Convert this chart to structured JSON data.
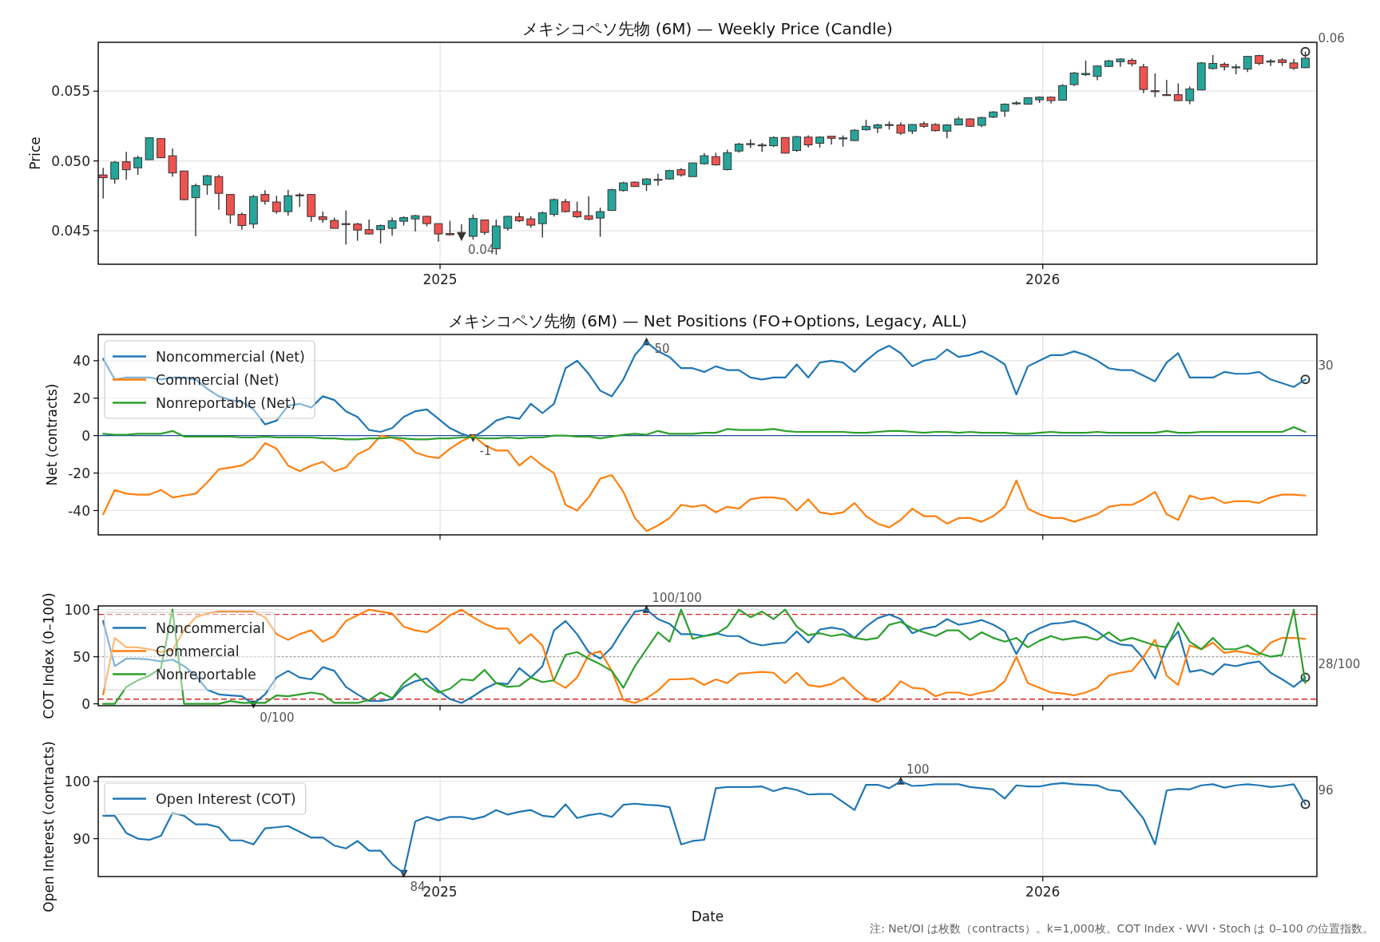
{
  "chart_data": [
    {
      "type": "candlestick",
      "title": "メキシコペソ先物 (6M) — Weekly Price (Candle)",
      "ylabel": "Price",
      "x": [
        "2024-06-11",
        "2024-06-18",
        "2024-06-25",
        "2024-07-02",
        "2024-07-09",
        "2024-07-16",
        "2024-07-23",
        "2024-07-30",
        "2024-08-06",
        "2024-08-13",
        "2024-08-20",
        "2024-08-27",
        "2024-09-03",
        "2024-09-10",
        "2024-09-17",
        "2024-09-24",
        "2024-10-01",
        "2024-10-08",
        "2024-10-15",
        "2024-10-22",
        "2024-10-29",
        "2024-11-05",
        "2024-11-12",
        "2024-11-19",
        "2024-11-26",
        "2024-12-03",
        "2024-12-10",
        "2024-12-17",
        "2024-12-24",
        "2024-12-31",
        "2025-01-07",
        "2025-01-14",
        "2025-01-21",
        "2025-01-28",
        "2025-02-04",
        "2025-02-11",
        "2025-02-18",
        "2025-02-25",
        "2025-03-04",
        "2025-03-11",
        "2025-03-18",
        "2025-03-25",
        "2025-04-01",
        "2025-04-08",
        "2025-04-15",
        "2025-04-22",
        "2025-04-29",
        "2025-05-06",
        "2025-05-13",
        "2025-05-20",
        "2025-05-27",
        "2025-06-03",
        "2025-06-10",
        "2025-06-17",
        "2025-06-24",
        "2025-07-01",
        "2025-07-08",
        "2025-07-15",
        "2025-07-22",
        "2025-07-29",
        "2025-08-05",
        "2025-08-12",
        "2025-08-19",
        "2025-08-26",
        "2025-09-02",
        "2025-09-09",
        "2025-09-16",
        "2025-09-23",
        "2025-09-30",
        "2025-10-07",
        "2025-10-14",
        "2025-10-21",
        "2025-10-28",
        "2025-11-04",
        "2025-11-11",
        "2025-11-18",
        "2025-11-25",
        "2025-12-02",
        "2025-12-09",
        "2025-12-16",
        "2025-12-23",
        "2025-12-30",
        "2026-01-06",
        "2026-01-13",
        "2026-01-20",
        "2026-01-27",
        "2026-02-03",
        "2026-02-10",
        "2026-02-17",
        "2026-02-24",
        "2026-03-03",
        "2026-03-10",
        "2026-03-17",
        "2026-03-24",
        "2026-03-31",
        "2026-04-07",
        "2026-04-14",
        "2026-04-21",
        "2026-04-28",
        "2026-05-05",
        "2026-05-12",
        "2026-05-19",
        "2026-05-26",
        "2026-06-02",
        "2026-06-09"
      ],
      "ohlc": [
        [
          0.049,
          0.0495,
          0.0473,
          0.0488
        ],
        [
          0.04871,
          0.05,
          0.04837,
          0.04991
        ],
        [
          0.04994,
          0.05066,
          0.04866,
          0.04937
        ],
        [
          0.04951,
          0.05037,
          0.049,
          0.05023
        ],
        [
          0.05009,
          0.05166,
          0.05009,
          0.05166
        ],
        [
          0.0516,
          0.0516,
          0.0502,
          0.05023
        ],
        [
          0.05037,
          0.05089,
          0.04888,
          0.04914
        ],
        [
          0.04928,
          0.04928,
          0.04717,
          0.04723
        ],
        [
          0.04737,
          0.04837,
          0.0446,
          0.04823
        ],
        [
          0.04828,
          0.049,
          0.04757,
          0.04894
        ],
        [
          0.04888,
          0.049,
          0.04651,
          0.04768
        ],
        [
          0.0476,
          0.0476,
          0.04551,
          0.04614
        ],
        [
          0.04617,
          0.04631,
          0.04508,
          0.04537
        ],
        [
          0.04548,
          0.04757,
          0.04517,
          0.04745
        ],
        [
          0.0476,
          0.04791,
          0.04688,
          0.04711
        ],
        [
          0.04706,
          0.04751,
          0.04622,
          0.04637
        ],
        [
          0.04637,
          0.04794,
          0.04608,
          0.04751
        ],
        [
          0.04757,
          0.04771,
          0.04671,
          0.04751
        ],
        [
          0.0476,
          0.0476,
          0.04565,
          0.04602
        ],
        [
          0.046,
          0.04637,
          0.04557,
          0.0458
        ],
        [
          0.04574,
          0.04594,
          0.04517,
          0.04517
        ],
        [
          0.04551,
          0.04645,
          0.04402,
          0.04545
        ],
        [
          0.04548,
          0.04557,
          0.04428,
          0.04505
        ],
        [
          0.04508,
          0.0458,
          0.04474,
          0.04477
        ],
        [
          0.04508,
          0.04545,
          0.04408,
          0.04537
        ],
        [
          0.04517,
          0.04594,
          0.04465,
          0.04571
        ],
        [
          0.04568,
          0.04603,
          0.04537,
          0.04594
        ],
        [
          0.04585,
          0.04614,
          0.04494,
          0.04608
        ],
        [
          0.04603,
          0.04608,
          0.04531,
          0.04551
        ],
        [
          0.04551,
          0.04551,
          0.04422,
          0.04477
        ],
        [
          0.0448,
          0.04571,
          0.04465,
          0.04471
        ],
        [
          0.04488,
          0.04546,
          0.0446,
          0.04485
        ],
        [
          0.0446,
          0.04617,
          0.04437,
          0.04588
        ],
        [
          0.04577,
          0.04577,
          0.04471,
          0.04488
        ],
        [
          0.04371,
          0.0458,
          0.04328,
          0.04534
        ],
        [
          0.04517,
          0.04608,
          0.04502,
          0.04603
        ],
        [
          0.046,
          0.04631,
          0.04562,
          0.04571
        ],
        [
          0.04585,
          0.04603,
          0.04522,
          0.0454
        ],
        [
          0.04551,
          0.04637,
          0.04451,
          0.04628
        ],
        [
          0.04617,
          0.04731,
          0.04602,
          0.04723
        ],
        [
          0.04708,
          0.04728,
          0.04631,
          0.04637
        ],
        [
          0.04637,
          0.04708,
          0.04591,
          0.046
        ],
        [
          0.04608,
          0.04746,
          0.04574,
          0.04582
        ],
        [
          0.04591,
          0.04665,
          0.04457,
          0.04637
        ],
        [
          0.04645,
          0.048,
          0.04643,
          0.04794
        ],
        [
          0.04788,
          0.04851,
          0.0478,
          0.04843
        ],
        [
          0.04848,
          0.04854,
          0.04814,
          0.04817
        ],
        [
          0.04831,
          0.04877,
          0.04785,
          0.04871
        ],
        [
          0.04866,
          0.04908,
          0.04823,
          0.04868
        ],
        [
          0.04871,
          0.04937,
          0.04866,
          0.04931
        ],
        [
          0.04937,
          0.04949,
          0.04888,
          0.049
        ],
        [
          0.04888,
          0.04986,
          0.04888,
          0.04986
        ],
        [
          0.0498,
          0.05057,
          0.04974,
          0.05037
        ],
        [
          0.05031,
          0.05059,
          0.04966,
          0.04972
        ],
        [
          0.04938,
          0.05081,
          0.04932,
          0.05059
        ],
        [
          0.05071,
          0.0513,
          0.05059,
          0.05121
        ],
        [
          0.05121,
          0.05155,
          0.05093,
          0.05124
        ],
        [
          0.05115,
          0.0513,
          0.05065,
          0.05112
        ],
        [
          0.05109,
          0.05177,
          0.05099,
          0.05168
        ],
        [
          0.05168,
          0.05168,
          0.05053,
          0.05056
        ],
        [
          0.05075,
          0.0518,
          0.05065,
          0.05174
        ],
        [
          0.05171,
          0.05183,
          0.05096,
          0.05115
        ],
        [
          0.05127,
          0.05177,
          0.05096,
          0.05171
        ],
        [
          0.05177,
          0.05177,
          0.05118,
          0.05162
        ],
        [
          0.05158,
          0.05183,
          0.05102,
          0.05165
        ],
        [
          0.05146,
          0.05227,
          0.05143,
          0.0522
        ],
        [
          0.05224,
          0.05295,
          0.05217,
          0.05248
        ],
        [
          0.05236,
          0.05267,
          0.05199,
          0.05258
        ],
        [
          0.05255,
          0.05283,
          0.05224,
          0.05261
        ],
        [
          0.05258,
          0.05276,
          0.05186,
          0.05199
        ],
        [
          0.05214,
          0.05264,
          0.05193,
          0.05261
        ],
        [
          0.05267,
          0.05283,
          0.05236,
          0.05248
        ],
        [
          0.05261,
          0.0527,
          0.05211,
          0.05217
        ],
        [
          0.05214,
          0.05264,
          0.05162,
          0.05258
        ],
        [
          0.05258,
          0.05317,
          0.05255,
          0.05301
        ],
        [
          0.05301,
          0.05307,
          0.05245,
          0.05248
        ],
        [
          0.05255,
          0.05317,
          0.05242,
          0.05311
        ],
        [
          0.05314,
          0.05357,
          0.05307,
          0.05351
        ],
        [
          0.05357,
          0.05413,
          0.05317,
          0.05407
        ],
        [
          0.0541,
          0.05429,
          0.05401,
          0.05416
        ],
        [
          0.05407,
          0.05457,
          0.05404,
          0.05453
        ],
        [
          0.05438,
          0.05463,
          0.05416,
          0.05457
        ],
        [
          0.05457,
          0.05463,
          0.05413,
          0.05432
        ],
        [
          0.05435,
          0.0555,
          0.05432,
          0.0554
        ],
        [
          0.05547,
          0.05637,
          0.05537,
          0.0563
        ],
        [
          0.05618,
          0.0572,
          0.05609,
          0.05627
        ],
        [
          0.05606,
          0.05686,
          0.05578,
          0.0568
        ],
        [
          0.05677,
          0.05724,
          0.05674,
          0.05717
        ],
        [
          0.05711,
          0.05736,
          0.05674,
          0.0573
        ],
        [
          0.05721,
          0.05736,
          0.05677,
          0.05696
        ],
        [
          0.05674,
          0.05696,
          0.05485,
          0.05512
        ],
        [
          0.05503,
          0.05627,
          0.05457,
          0.05497
        ],
        [
          0.05475,
          0.05581,
          0.05469,
          0.05469
        ],
        [
          0.05475,
          0.05556,
          0.05429,
          0.05432
        ],
        [
          0.05432,
          0.05534,
          0.05407,
          0.05516
        ],
        [
          0.05509,
          0.05708,
          0.05506,
          0.05702
        ],
        [
          0.05662,
          0.05758,
          0.05655,
          0.05699
        ],
        [
          0.05693,
          0.05705,
          0.05649,
          0.05674
        ],
        [
          0.05668,
          0.05693,
          0.05621,
          0.05674
        ],
        [
          0.05658,
          0.05749,
          0.05637,
          0.05749
        ],
        [
          0.05755,
          0.05761,
          0.05686,
          0.05699
        ],
        [
          0.05708,
          0.0573,
          0.0568,
          0.05717
        ],
        [
          0.05724,
          0.05736,
          0.0568,
          0.05705
        ],
        [
          0.05702,
          0.0573,
          0.05652,
          0.05665
        ],
        [
          0.05668,
          0.05783,
          0.05665,
          0.05736
        ]
      ],
      "colors": [
        "#ef5350",
        "#26a69a",
        "#ef5350",
        "#26a69a",
        "#26a69a",
        "#ef5350",
        "#ef5350",
        "#ef5350",
        "#26a69a",
        "#26a69a",
        "#ef5350",
        "#ef5350",
        "#ef5350",
        "#26a69a",
        "#ef5350",
        "#ef5350",
        "#26a69a",
        "#ef5350",
        "#ef5350",
        "#ef5350",
        "#ef5350",
        "#ef5350",
        "#ef5350",
        "#ef5350",
        "#26a69a",
        "#26a69a",
        "#26a69a",
        "#26a69a",
        "#ef5350",
        "#ef5350",
        "#ef5350",
        "#ef5350",
        "#26a69a",
        "#ef5350",
        "#26a69a",
        "#26a69a",
        "#ef5350",
        "#ef5350",
        "#26a69a",
        "#26a69a",
        "#ef5350",
        "#ef5350",
        "#ef5350",
        "#26a69a",
        "#26a69a",
        "#26a69a",
        "#ef5350",
        "#26a69a",
        "#26a69a",
        "#26a69a",
        "#ef5350",
        "#26a69a",
        "#26a69a",
        "#ef5350",
        "#26a69a",
        "#26a69a",
        "#26a69a",
        "#ef5350",
        "#26a69a",
        "#ef5350",
        "#26a69a",
        "#ef5350",
        "#26a69a",
        "#ef5350",
        "#26a69a",
        "#26a69a",
        "#26a69a",
        "#26a69a",
        "#26a69a",
        "#ef5350",
        "#26a69a",
        "#ef5350",
        "#ef5350",
        "#26a69a",
        "#26a69a",
        "#ef5350",
        "#26a69a",
        "#26a69a",
        "#26a69a",
        "#26a69a",
        "#26a69a",
        "#26a69a",
        "#ef5350",
        "#26a69a",
        "#26a69a",
        "#26a69a",
        "#26a69a",
        "#26a69a",
        "#26a69a",
        "#ef5350",
        "#ef5350",
        "#ef5350",
        "#ef5350",
        "#ef5350",
        "#26a69a",
        "#26a69a",
        "#26a69a",
        "#ef5350",
        "#26a69a",
        "#26a69a",
        "#ef5350",
        "#26a69a",
        "#ef5350",
        "#ef5350",
        "#26a69a"
      ],
      "xlim": [
        "2024-06-08",
        "2026-06-16"
      ],
      "ylim": [
        0.0426,
        0.0585
      ],
      "xticks": [
        {
          "value": "2025-01-01",
          "label": "2025"
        },
        {
          "value": "2026-01-01",
          "label": "2026"
        }
      ],
      "yticks": [
        {
          "value": 0.045,
          "label": "0.045"
        },
        {
          "value": 0.05,
          "label": "0.050"
        },
        {
          "value": 0.055,
          "label": "0.055"
        }
      ],
      "grid": true,
      "annotations": [
        {
          "text": "0.04",
          "x": "2025-01-14",
          "y": 0.0446
        },
        {
          "text": "0.06",
          "x": "2026-06-09",
          "y": 0.05783
        }
      ]
    },
    {
      "type": "line",
      "title": "メキシコペソ先物 (6M) — Net Positions (FO+Options, Legacy, ALL)",
      "ylabel": "Net (contracts)",
      "x": [
        "2024-06-11",
        "2024-06-18",
        "2024-06-25",
        "2024-07-02",
        "2024-07-09",
        "2024-07-16",
        "2024-07-23",
        "2024-07-30",
        "2024-08-06",
        "2024-08-13",
        "2024-08-20",
        "2024-08-27",
        "2024-09-03",
        "2024-09-10",
        "2024-09-17",
        "2024-09-24",
        "2024-10-01",
        "2024-10-08",
        "2024-10-15",
        "2024-10-22",
        "2024-10-29",
        "2024-11-05",
        "2024-11-12",
        "2024-11-19",
        "2024-11-26",
        "2024-12-03",
        "2024-12-10",
        "2024-12-17",
        "2024-12-24",
        "2024-12-31",
        "2025-01-07",
        "2025-01-14",
        "2025-01-21",
        "2025-01-28",
        "2025-02-04",
        "2025-02-11",
        "2025-02-18",
        "2025-02-25",
        "2025-03-04",
        "2025-03-11",
        "2025-03-18",
        "2025-03-25",
        "2025-04-01",
        "2025-04-08",
        "2025-04-15",
        "2025-04-22",
        "2025-04-29",
        "2025-05-06",
        "2025-05-13",
        "2025-05-20",
        "2025-05-27",
        "2025-06-03",
        "2025-06-10",
        "2025-06-17",
        "2025-06-24",
        "2025-07-01",
        "2025-07-08",
        "2025-07-15",
        "2025-07-22",
        "2025-07-29",
        "2025-08-05",
        "2025-08-12",
        "2025-08-19",
        "2025-08-26",
        "2025-09-02",
        "2025-09-09",
        "2025-09-16",
        "2025-09-23",
        "2025-09-30",
        "2025-10-07",
        "2025-10-14",
        "2025-10-21",
        "2025-10-28",
        "2025-11-04",
        "2025-11-11",
        "2025-11-18",
        "2025-11-25",
        "2025-12-02",
        "2025-12-09",
        "2025-12-16",
        "2025-12-23",
        "2025-12-30",
        "2026-01-06",
        "2026-01-13",
        "2026-01-20",
        "2026-01-27",
        "2026-02-03",
        "2026-02-10",
        "2026-02-17",
        "2026-02-24",
        "2026-03-03",
        "2026-03-10",
        "2026-03-17",
        "2026-03-24",
        "2026-03-31",
        "2026-04-07",
        "2026-04-14",
        "2026-04-21",
        "2026-04-28",
        "2026-05-05",
        "2026-05-12",
        "2026-05-19",
        "2026-05-26",
        "2026-06-02",
        "2026-06-09"
      ],
      "series": [
        {
          "name": "Noncommercial (Net)",
          "color": "#1f77b4",
          "values": [
            41,
            30,
            31,
            31,
            31,
            30,
            31,
            31,
            30,
            25,
            21,
            19,
            18,
            14,
            6,
            8,
            16,
            17,
            15,
            21,
            19,
            13,
            10,
            3,
            2,
            4,
            10,
            13,
            14,
            9,
            4,
            1,
            -1,
            3,
            8,
            10,
            9,
            17,
            12,
            17,
            36,
            40,
            33,
            24,
            21,
            30,
            43,
            50,
            45,
            42,
            36,
            36,
            34,
            37,
            35,
            35,
            31,
            30,
            31,
            31,
            38,
            31,
            39,
            40,
            39,
            34,
            40,
            45,
            48,
            44,
            37,
            40,
            41,
            46,
            42,
            43,
            45,
            42,
            38,
            22,
            37,
            40,
            43,
            43,
            45,
            43,
            40,
            36,
            35,
            35,
            32,
            29,
            39,
            44,
            31,
            31,
            31,
            34,
            33,
            33,
            34,
            30,
            28,
            26,
            30
          ]
        },
        {
          "name": "Commercial (Net)",
          "color": "#ff7f0e",
          "values": [
            -42,
            -29,
            -31,
            -31.5,
            -31.5,
            -29,
            -33,
            -32,
            -31,
            -25,
            -18,
            -17,
            -16,
            -12,
            -4,
            -7,
            -16,
            -19,
            -16,
            -14,
            -19,
            -17,
            -10,
            -7,
            0,
            -1,
            -3,
            -9,
            -11,
            -12,
            -7,
            -3,
            0,
            -5,
            -8,
            -8,
            -16,
            -11,
            -16,
            -20,
            -37,
            -40,
            -33,
            -23,
            -21,
            -30,
            -44,
            -51,
            -48,
            -44,
            -37,
            -38,
            -37,
            -41,
            -38,
            -39,
            -34,
            -33,
            -33,
            -34,
            -40,
            -34,
            -41,
            -42,
            -41,
            -36,
            -43,
            -47,
            -49,
            -45,
            -39,
            -43,
            -43,
            -47,
            -44,
            -44,
            -46,
            -43,
            -38,
            -24,
            -39,
            -42,
            -44,
            -44,
            -46,
            -44,
            -42,
            -38,
            -37,
            -37,
            -34,
            -30,
            -42,
            -45,
            -32,
            -34,
            -33,
            -36,
            -35,
            -35,
            -36,
            -33,
            -31.5,
            -31.5,
            -32
          ]
        },
        {
          "name": "Nonreportable (Net)",
          "color": "#2ca02c",
          "values": [
            1,
            0.5,
            0.5,
            1,
            1,
            1,
            2.5,
            -0.5,
            -0.5,
            -0.5,
            -0.5,
            -0.5,
            -1,
            -1,
            -0.5,
            -1,
            -1,
            -1,
            -1,
            -1.5,
            -1.5,
            -2,
            -2,
            -1.5,
            -1.5,
            -1,
            -1.5,
            -2,
            -2,
            -1.5,
            -1.5,
            -1,
            -1,
            -1.5,
            -1.5,
            -1,
            -1.5,
            -1,
            -1,
            0,
            0,
            -0.5,
            -0.5,
            -1.5,
            -0.5,
            0.5,
            1,
            0.5,
            2.5,
            1,
            1,
            1,
            1.5,
            1.5,
            3.5,
            3,
            3,
            3,
            3.5,
            2.5,
            2,
            2,
            2,
            2,
            2,
            1.5,
            1.5,
            2,
            2.5,
            2.5,
            2,
            1.5,
            2,
            2,
            1.5,
            2,
            1.5,
            1.5,
            1.5,
            1,
            1,
            1.5,
            2,
            1.5,
            1.5,
            1.5,
            2,
            1.5,
            1.5,
            1.5,
            1.5,
            1.5,
            2.5,
            1.5,
            1.5,
            2,
            2,
            2,
            2,
            2,
            2,
            2,
            2,
            4.5,
            2
          ]
        }
      ],
      "xlim": [
        "2024-06-08",
        "2026-06-16"
      ],
      "ylim": [
        -53,
        54
      ],
      "xticks": [
        {
          "value": "2025-01-01",
          "label": null
        },
        {
          "value": "2026-01-01",
          "label": null
        }
      ],
      "yticks": [
        -40,
        -20,
        0,
        20,
        40
      ],
      "tick_labels": "y",
      "grid": true,
      "legend": "top left",
      "ref_lines": [
        {
          "axis": "y",
          "value": 0,
          "color": "#1f4e9c",
          "line_style": "solid"
        }
      ],
      "annotations": [
        {
          "text": "50",
          "x": "2025-05-06",
          "y": 50
        },
        {
          "text": "-1",
          "x": "2025-01-21",
          "y": -1
        },
        {
          "text": "30",
          "x": "2026-06-09",
          "y": 30
        }
      ]
    },
    {
      "type": "line",
      "ylabel": "COT Index (0–100)",
      "x": [
        "2024-06-11",
        "2024-06-18",
        "2024-06-25",
        "2024-07-02",
        "2024-07-09",
        "2024-07-16",
        "2024-07-23",
        "2024-07-30",
        "2024-08-06",
        "2024-08-13",
        "2024-08-20",
        "2024-08-27",
        "2024-09-03",
        "2024-09-10",
        "2024-09-17",
        "2024-09-24",
        "2024-10-01",
        "2024-10-08",
        "2024-10-15",
        "2024-10-22",
        "2024-10-29",
        "2024-11-05",
        "2024-11-12",
        "2024-11-19",
        "2024-11-26",
        "2024-12-03",
        "2024-12-10",
        "2024-12-17",
        "2024-12-24",
        "2024-12-31",
        "2025-01-07",
        "2025-01-14",
        "2025-01-21",
        "2025-01-28",
        "2025-02-04",
        "2025-02-11",
        "2025-02-18",
        "2025-02-25",
        "2025-03-04",
        "2025-03-11",
        "2025-03-18",
        "2025-03-25",
        "2025-04-01",
        "2025-04-08",
        "2025-04-15",
        "2025-04-22",
        "2025-04-29",
        "2025-05-06",
        "2025-05-13",
        "2025-05-20",
        "2025-05-27",
        "2025-06-03",
        "2025-06-10",
        "2025-06-17",
        "2025-06-24",
        "2025-07-01",
        "2025-07-08",
        "2025-07-15",
        "2025-07-22",
        "2025-07-29",
        "2025-08-05",
        "2025-08-12",
        "2025-08-19",
        "2025-08-26",
        "2025-09-02",
        "2025-09-09",
        "2025-09-16",
        "2025-09-23",
        "2025-09-30",
        "2025-10-07",
        "2025-10-14",
        "2025-10-21",
        "2025-10-28",
        "2025-11-04",
        "2025-11-11",
        "2025-11-18",
        "2025-11-25",
        "2025-12-02",
        "2025-12-09",
        "2025-12-16",
        "2025-12-23",
        "2025-12-30",
        "2026-01-06",
        "2026-01-13",
        "2026-01-20",
        "2026-01-27",
        "2026-02-03",
        "2026-02-10",
        "2026-02-17",
        "2026-02-24",
        "2026-03-03",
        "2026-03-10",
        "2026-03-17",
        "2026-03-24",
        "2026-03-31",
        "2026-04-07",
        "2026-04-14",
        "2026-04-21",
        "2026-04-28",
        "2026-05-05",
        "2026-05-12",
        "2026-05-19",
        "2026-05-26",
        "2026-06-02",
        "2026-06-09"
      ],
      "series": [
        {
          "name": "Noncommercial",
          "color": "#1f77b4",
          "values": [
            88,
            40,
            48,
            48,
            47,
            45,
            47,
            40,
            30,
            15,
            10,
            9,
            8,
            0,
            10,
            28,
            35,
            28,
            26,
            39,
            35,
            18,
            10,
            3,
            3,
            5,
            18,
            24,
            27,
            14,
            5,
            1,
            8,
            16,
            22,
            21,
            38,
            28,
            40,
            78,
            88,
            74,
            55,
            48,
            60,
            80,
            98,
            100,
            90,
            85,
            74,
            74,
            72,
            75,
            72,
            72,
            65,
            62,
            64,
            65,
            77,
            65,
            79,
            81,
            79,
            70,
            82,
            91,
            95,
            90,
            75,
            80,
            82,
            90,
            84,
            86,
            89,
            84,
            77,
            53,
            74,
            80,
            85,
            86,
            88,
            84,
            77,
            68,
            63,
            62,
            48,
            27,
            62,
            77,
            34,
            36,
            31,
            42,
            40,
            43,
            45,
            33,
            26,
            18,
            28
          ]
        },
        {
          "name": "Commercial",
          "color": "#ff7f0e",
          "values": [
            10,
            70,
            60,
            60,
            58,
            55,
            57,
            78,
            92,
            96,
            98,
            98,
            98,
            98,
            92,
            74,
            68,
            74,
            78,
            66,
            72,
            88,
            94,
            100,
            98,
            96,
            82,
            78,
            76,
            84,
            94,
            100,
            92,
            85,
            80,
            80,
            64,
            74,
            62,
            24,
            17,
            28,
            52,
            56,
            35,
            4,
            1,
            6,
            14,
            26,
            26,
            27,
            20,
            26,
            22,
            32,
            33,
            34,
            33,
            22,
            33,
            20,
            18,
            21,
            28,
            16,
            6,
            2,
            10,
            24,
            17,
            16,
            8,
            12,
            12,
            9,
            12,
            14,
            24,
            50,
            22,
            17,
            12,
            11,
            9,
            12,
            17,
            30,
            33,
            35,
            50,
            68,
            30,
            20,
            62,
            58,
            65,
            54,
            56,
            54,
            52,
            65,
            70,
            70,
            69
          ]
        },
        {
          "name": "Nonreportable",
          "color": "#2ca02c",
          "values": [
            0,
            0,
            18,
            25,
            30,
            38,
            100,
            0,
            0,
            0,
            0,
            3,
            1,
            1,
            1,
            9,
            8,
            10,
            12,
            10,
            1,
            1,
            1,
            4,
            12,
            6,
            22,
            32,
            20,
            12,
            16,
            26,
            25,
            36,
            22,
            18,
            19,
            28,
            23,
            25,
            52,
            55,
            48,
            42,
            35,
            17,
            40,
            58,
            76,
            66,
            100,
            69,
            72,
            74,
            82,
            100,
            92,
            98,
            90,
            100,
            82,
            73,
            75,
            72,
            74,
            70,
            68,
            70,
            84,
            87,
            80,
            76,
            72,
            78,
            78,
            68,
            76,
            70,
            66,
            70,
            60,
            67,
            72,
            68,
            70,
            71,
            68,
            76,
            67,
            70,
            66,
            62,
            60,
            86,
            66,
            58,
            70,
            58,
            58,
            62,
            54,
            50,
            52,
            100,
            22
          ]
        }
      ],
      "xlim": [
        "2024-06-08",
        "2026-06-16"
      ],
      "ylim": [
        -2,
        104
      ],
      "xticks": [
        {
          "value": "2025-01-01",
          "label": null
        },
        {
          "value": "2026-01-01",
          "label": null
        }
      ],
      "yticks": [
        0,
        50,
        100
      ],
      "tick_labels": "y",
      "grid": true,
      "legend": "top left",
      "ref_lines": [
        {
          "axis": "y",
          "value": 95,
          "color": "#d62728",
          "line_style": "dashed"
        },
        {
          "axis": "y",
          "value": 5,
          "color": "#d62728",
          "line_style": "dashed"
        },
        {
          "axis": "y",
          "value": 50,
          "color": "#999999",
          "line_style": "dotted"
        }
      ],
      "annotations": [
        {
          "text": "100/100",
          "x": "2025-05-06",
          "y": 100
        },
        {
          "text": "0/100",
          "x": "2024-09-10",
          "y": 0
        },
        {
          "text": "28/100",
          "x": "2026-06-09",
          "y": 28
        }
      ]
    },
    {
      "type": "line",
      "ylabel": "Open Interest (contracts)",
      "xlabel": "Date",
      "x": [
        "2024-06-11",
        "2024-06-18",
        "2024-06-25",
        "2024-07-02",
        "2024-07-09",
        "2024-07-16",
        "2024-07-23",
        "2024-07-30",
        "2024-08-06",
        "2024-08-13",
        "2024-08-20",
        "2024-08-27",
        "2024-09-03",
        "2024-09-10",
        "2024-09-17",
        "2024-09-24",
        "2024-10-01",
        "2024-10-08",
        "2024-10-15",
        "2024-10-22",
        "2024-10-29",
        "2024-11-05",
        "2024-11-12",
        "2024-11-19",
        "2024-11-26",
        "2024-12-03",
        "2024-12-10",
        "2024-12-17",
        "2024-12-24",
        "2024-12-31",
        "2025-01-07",
        "2025-01-14",
        "2025-01-21",
        "2025-01-28",
        "2025-02-04",
        "2025-02-11",
        "2025-02-18",
        "2025-02-25",
        "2025-03-04",
        "2025-03-11",
        "2025-03-18",
        "2025-03-25",
        "2025-04-01",
        "2025-04-08",
        "2025-04-15",
        "2025-04-22",
        "2025-04-29",
        "2025-05-06",
        "2025-05-13",
        "2025-05-20",
        "2025-05-27",
        "2025-06-03",
        "2025-06-10",
        "2025-06-17",
        "2025-06-24",
        "2025-07-01",
        "2025-07-08",
        "2025-07-15",
        "2025-07-22",
        "2025-07-29",
        "2025-08-05",
        "2025-08-12",
        "2025-08-19",
        "2025-08-26",
        "2025-09-02",
        "2025-09-09",
        "2025-09-16",
        "2025-09-23",
        "2025-09-30",
        "2025-10-07",
        "2025-10-14",
        "2025-10-21",
        "2025-10-28",
        "2025-11-04",
        "2025-11-11",
        "2025-11-18",
        "2025-11-25",
        "2025-12-02",
        "2025-12-09",
        "2025-12-16",
        "2025-12-23",
        "2025-12-30",
        "2026-01-06",
        "2026-01-13",
        "2026-01-20",
        "2026-01-27",
        "2026-02-03",
        "2026-02-10",
        "2026-02-17",
        "2026-02-24",
        "2026-03-03",
        "2026-03-10",
        "2026-03-17",
        "2026-03-24",
        "2026-03-31",
        "2026-04-07",
        "2026-04-14",
        "2026-04-21",
        "2026-04-28",
        "2026-05-05",
        "2026-05-12",
        "2026-05-19",
        "2026-05-26",
        "2026-06-02",
        "2026-06-09"
      ],
      "series": [
        {
          "name": "Open Interest (COT)",
          "color": "#1f77b4",
          "values": [
            94,
            94,
            91,
            90,
            89.8,
            90.5,
            94.5,
            94,
            92.5,
            92.5,
            92,
            89.7,
            89.7,
            89,
            91.8,
            92,
            92.2,
            91.2,
            90.2,
            90.2,
            88.8,
            88.3,
            89.6,
            87.9,
            87.9,
            85.5,
            84,
            93,
            93.8,
            93.2,
            93.8,
            93.8,
            93.4,
            93.9,
            95,
            94.2,
            94.7,
            95,
            94,
            93.8,
            96,
            93.6,
            94.1,
            94.4,
            93.8,
            95.9,
            96.1,
            95.9,
            95.8,
            95.5,
            89,
            89.6,
            89.8,
            98.8,
            99,
            99,
            99,
            99.1,
            98.3,
            98.9,
            98.5,
            97.7,
            97.8,
            97.8,
            96.4,
            95,
            99.4,
            99.4,
            98.8,
            100,
            99.2,
            99.3,
            99.5,
            99.5,
            99.5,
            99,
            98.8,
            98.6,
            97,
            99.3,
            99.1,
            99.1,
            99.5,
            99.7,
            99.5,
            99.4,
            99.3,
            98.5,
            98.3,
            96,
            93.5,
            89,
            98.4,
            98.7,
            98.6,
            99.3,
            99.5,
            98.9,
            99.3,
            99.5,
            99.3,
            99,
            99.2,
            99.5,
            96
          ]
        }
      ],
      "xlim": [
        "2024-06-08",
        "2026-06-16"
      ],
      "ylim": [
        83.4,
        100.8
      ],
      "xticks": [
        {
          "value": "2025-01-01",
          "label": "2025"
        },
        {
          "value": "2026-01-01",
          "label": "2026"
        }
      ],
      "yticks": [
        90,
        100
      ],
      "grid": true,
      "legend": "top left",
      "annotations": [
        {
          "text": "84",
          "x": "2024-12-10",
          "y": 84
        },
        {
          "text": "100",
          "x": "2025-10-07",
          "y": 100
        },
        {
          "text": "96",
          "x": "2026-06-09",
          "y": 96
        },
        "注: Net/OI は枚数（contracts）。k=1,000枚。COT Index・WVI・Stoch は 0–100 の位置指数。"
      ]
    }
  ]
}
